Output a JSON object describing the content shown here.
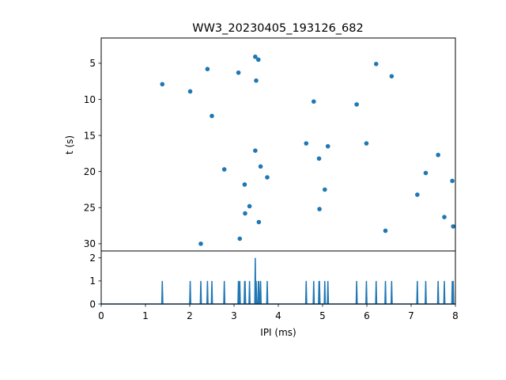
{
  "chart_data": [
    {
      "type": "scatter",
      "title": "WW3_20230405_193126_682",
      "ylabel": "t (s)",
      "xlim": [
        0,
        8
      ],
      "ylim": [
        31,
        1.5
      ],
      "y_inverted": true,
      "yticks": [
        5,
        10,
        15,
        20,
        25,
        30
      ],
      "color": "#1f77b4",
      "points": [
        {
          "x": 1.38,
          "y": 7.9
        },
        {
          "x": 2.01,
          "y": 8.9
        },
        {
          "x": 2.25,
          "y": 30.0
        },
        {
          "x": 2.4,
          "y": 5.8
        },
        {
          "x": 2.5,
          "y": 12.3
        },
        {
          "x": 2.78,
          "y": 19.7
        },
        {
          "x": 3.1,
          "y": 6.3
        },
        {
          "x": 3.13,
          "y": 29.3
        },
        {
          "x": 3.24,
          "y": 21.8
        },
        {
          "x": 3.25,
          "y": 25.8
        },
        {
          "x": 3.35,
          "y": 24.8
        },
        {
          "x": 3.48,
          "y": 17.1
        },
        {
          "x": 3.48,
          "y": 4.1
        },
        {
          "x": 3.5,
          "y": 7.4
        },
        {
          "x": 3.55,
          "y": 4.5
        },
        {
          "x": 3.56,
          "y": 27.0
        },
        {
          "x": 3.6,
          "y": 19.3
        },
        {
          "x": 3.75,
          "y": 20.8
        },
        {
          "x": 4.63,
          "y": 16.1
        },
        {
          "x": 4.8,
          "y": 10.3
        },
        {
          "x": 4.92,
          "y": 18.2
        },
        {
          "x": 4.93,
          "y": 25.2
        },
        {
          "x": 5.05,
          "y": 22.5
        },
        {
          "x": 5.12,
          "y": 16.5
        },
        {
          "x": 5.77,
          "y": 10.7
        },
        {
          "x": 5.99,
          "y": 16.1
        },
        {
          "x": 6.21,
          "y": 5.1
        },
        {
          "x": 6.42,
          "y": 28.2
        },
        {
          "x": 6.56,
          "y": 6.8
        },
        {
          "x": 7.14,
          "y": 23.2
        },
        {
          "x": 7.33,
          "y": 20.2
        },
        {
          "x": 7.61,
          "y": 17.7
        },
        {
          "x": 7.75,
          "y": 26.3
        },
        {
          "x": 7.93,
          "y": 21.3
        },
        {
          "x": 7.95,
          "y": 27.6
        }
      ]
    },
    {
      "type": "line",
      "xlabel": "IPI (ms)",
      "xlim": [
        0,
        8
      ],
      "ylim": [
        0,
        2.3
      ],
      "xticks": [
        0,
        1,
        2,
        3,
        4,
        5,
        6,
        7,
        8
      ],
      "yticks": [
        0,
        1,
        2
      ],
      "color": "#1f77b4",
      "peaks": [
        {
          "x": 1.38,
          "y": 1
        },
        {
          "x": 2.01,
          "y": 1
        },
        {
          "x": 2.25,
          "y": 1
        },
        {
          "x": 2.4,
          "y": 1
        },
        {
          "x": 2.5,
          "y": 1
        },
        {
          "x": 2.78,
          "y": 1
        },
        {
          "x": 3.1,
          "y": 1
        },
        {
          "x": 3.13,
          "y": 1
        },
        {
          "x": 3.24,
          "y": 1
        },
        {
          "x": 3.25,
          "y": 1
        },
        {
          "x": 3.35,
          "y": 1
        },
        {
          "x": 3.48,
          "y": 2
        },
        {
          "x": 3.5,
          "y": 1
        },
        {
          "x": 3.55,
          "y": 1
        },
        {
          "x": 3.56,
          "y": 1
        },
        {
          "x": 3.6,
          "y": 1
        },
        {
          "x": 3.75,
          "y": 1
        },
        {
          "x": 4.63,
          "y": 1
        },
        {
          "x": 4.8,
          "y": 1
        },
        {
          "x": 4.92,
          "y": 1
        },
        {
          "x": 4.93,
          "y": 1
        },
        {
          "x": 5.05,
          "y": 1
        },
        {
          "x": 5.12,
          "y": 1
        },
        {
          "x": 5.77,
          "y": 1
        },
        {
          "x": 5.99,
          "y": 1
        },
        {
          "x": 6.21,
          "y": 1
        },
        {
          "x": 6.42,
          "y": 1
        },
        {
          "x": 6.56,
          "y": 1
        },
        {
          "x": 7.14,
          "y": 1
        },
        {
          "x": 7.33,
          "y": 1
        },
        {
          "x": 7.61,
          "y": 1
        },
        {
          "x": 7.75,
          "y": 1
        },
        {
          "x": 7.93,
          "y": 1
        },
        {
          "x": 7.95,
          "y": 1
        }
      ]
    }
  ]
}
